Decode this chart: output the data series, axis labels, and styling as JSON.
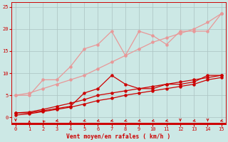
{
  "x": [
    0,
    1,
    2,
    3,
    4,
    5,
    6,
    7,
    8,
    9,
    10,
    11,
    12,
    13,
    14,
    15
  ],
  "light_jagged_y": [
    5.0,
    5.0,
    8.5,
    8.5,
    11.5,
    15.5,
    16.5,
    19.5,
    14.0,
    19.5,
    18.5,
    16.5,
    19.5,
    19.5,
    19.5,
    23.5
  ],
  "light_straight_y": [
    5.0,
    5.5,
    6.5,
    7.5,
    8.5,
    9.5,
    11.0,
    12.5,
    14.0,
    15.5,
    17.0,
    18.0,
    19.0,
    20.0,
    21.5,
    23.5
  ],
  "dark_jagged_y": [
    1.0,
    1.0,
    1.5,
    2.0,
    2.5,
    5.5,
    6.5,
    9.5,
    7.5,
    6.5,
    6.5,
    7.5,
    7.5,
    8.0,
    9.5,
    9.5
  ],
  "dark_straight1_y": [
    1.0,
    1.2,
    1.8,
    2.5,
    3.2,
    4.0,
    5.0,
    5.5,
    6.0,
    6.5,
    7.0,
    7.5,
    8.0,
    8.5,
    9.0,
    9.5
  ],
  "dark_straight2_y": [
    0.5,
    0.8,
    1.3,
    1.8,
    2.3,
    3.0,
    3.8,
    4.3,
    5.0,
    5.5,
    6.0,
    6.5,
    7.0,
    7.5,
    8.5,
    9.0
  ],
  "color_light": "#e89898",
  "color_dark": "#cc0000",
  "bg_color": "#cce8e5",
  "grid_color": "#b0c8c6",
  "xlabel": "Vent moyen/en rafales ( km/h )",
  "xlim": [
    -0.3,
    15.3
  ],
  "ylim": [
    -1.5,
    26
  ],
  "yticks": [
    0,
    5,
    10,
    15,
    20,
    25
  ],
  "xticks": [
    0,
    1,
    2,
    3,
    4,
    5,
    6,
    7,
    8,
    9,
    10,
    11,
    12,
    13,
    14,
    15
  ],
  "wind_dirs_deg": [
    180,
    0,
    340,
    225,
    0,
    225,
    225,
    225,
    225,
    225,
    225,
    225,
    180,
    225,
    180,
    225
  ]
}
